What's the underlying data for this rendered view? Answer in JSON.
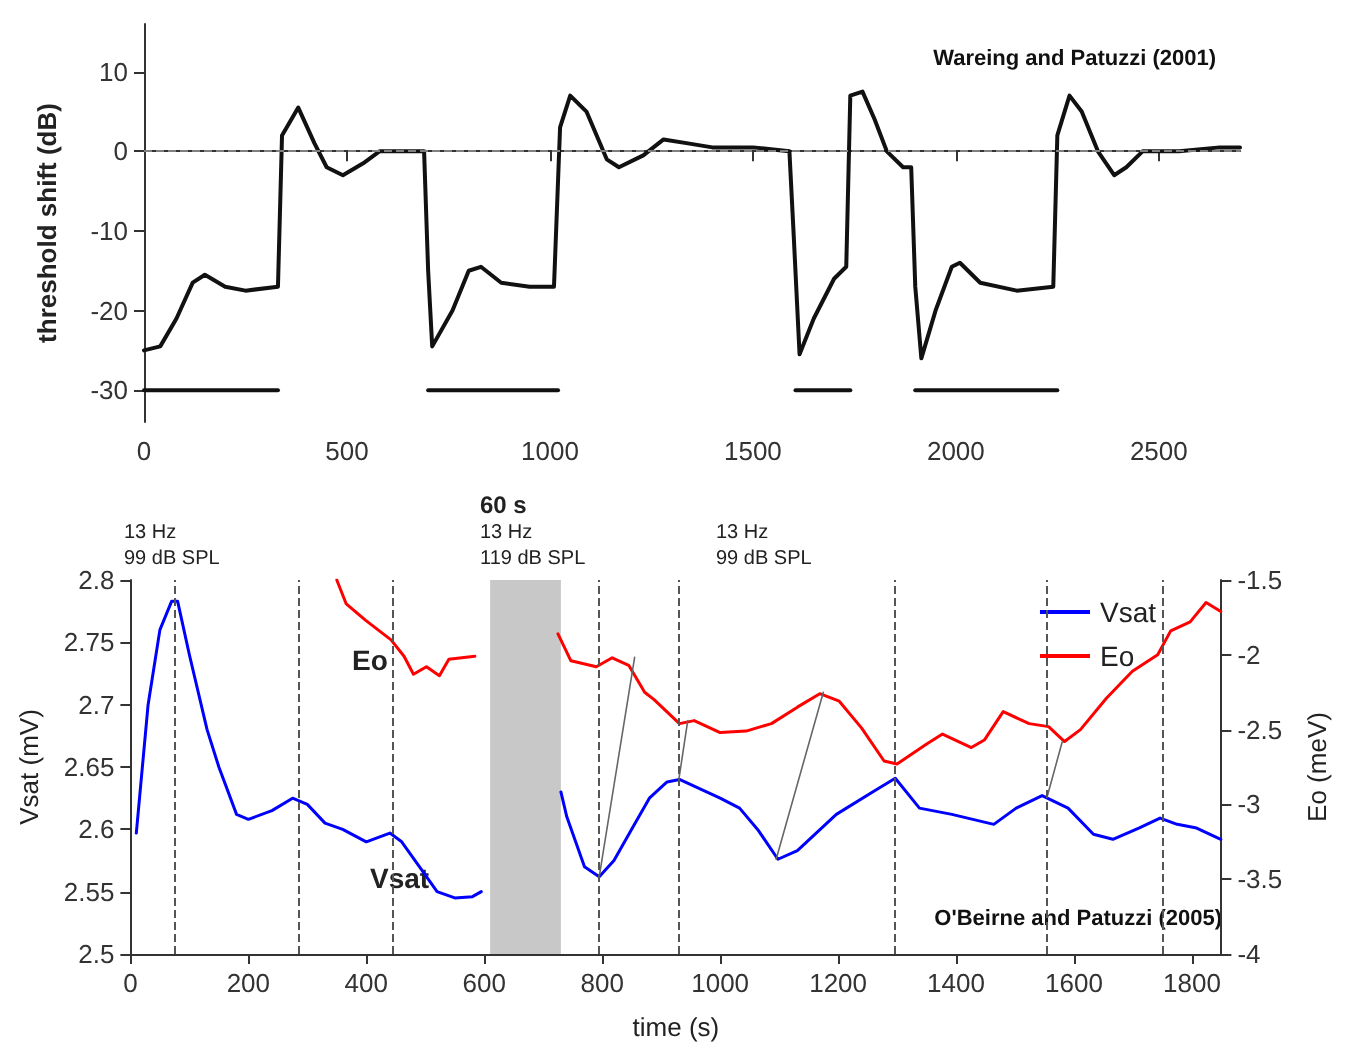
{
  "chart_data": [
    {
      "type": "line",
      "ylabel": "threshold shift (dB)",
      "xlim": [
        0,
        2700
      ],
      "xticks": [
        0,
        500,
        1000,
        1500,
        2000,
        2500
      ],
      "ylim": [
        -34,
        16
      ],
      "yticks": [
        -30,
        -20,
        -10,
        0,
        10
      ],
      "grid": false,
      "legend": false,
      "annotations": [
        "Wareing and Patuzzi (2001)"
      ],
      "ref_lines": [
        {
          "axis": "y",
          "value": 0,
          "color": "#808080",
          "line_style": "dashed"
        }
      ],
      "series": [
        {
          "color": "#111111",
          "x": [
            0,
            40,
            80,
            120,
            150,
            200,
            250,
            330,
            340,
            380,
            420,
            450,
            490,
            540,
            580,
            650,
            690,
            700,
            710,
            760,
            800,
            830,
            880,
            950,
            1010,
            1025,
            1050,
            1090,
            1140,
            1170,
            1230,
            1280,
            1340,
            1400,
            1500,
            1590,
            1600,
            1615,
            1650,
            1700,
            1730,
            1740,
            1770,
            1800,
            1830,
            1870,
            1890,
            1900,
            1915,
            1950,
            1990,
            2010,
            2060,
            2150,
            2240,
            2250,
            2280,
            2310,
            2350,
            2390,
            2420,
            2460,
            2550,
            2650,
            2700
          ],
          "values": [
            -25,
            -24.5,
            -21,
            -16.5,
            -15.5,
            -17,
            -17.5,
            -17,
            2,
            5.5,
            1,
            -2,
            -3,
            -1.5,
            0,
            0,
            0,
            -15,
            -24.5,
            -20,
            -15,
            -14.5,
            -16.5,
            -17,
            -17,
            3,
            7,
            5,
            -1,
            -2,
            -0.5,
            1.5,
            1,
            0.5,
            0.5,
            0,
            -10,
            -25.5,
            -21,
            -16,
            -14.5,
            7,
            7.5,
            4,
            0,
            -2,
            -2,
            -17,
            -26,
            -20,
            -14.5,
            -14,
            -16.5,
            -17.5,
            -17,
            2,
            7,
            5,
            0,
            -3,
            -2,
            0,
            0,
            0.5,
            0.5
          ]
        },
        {
          "color": "#111111",
          "x": [
            0,
            330
          ],
          "values": [
            -30,
            -30
          ]
        },
        {
          "color": "#111111",
          "x": [
            700,
            1020
          ],
          "values": [
            -30,
            -30
          ]
        },
        {
          "color": "#111111",
          "x": [
            1605,
            1740
          ],
          "values": [
            -30,
            -30
          ]
        },
        {
          "color": "#111111",
          "x": [
            1900,
            2250
          ],
          "values": [
            -30,
            -30
          ]
        }
      ]
    },
    {
      "type": "line",
      "xlabel": "time (s)",
      "ylabel": "Vsat (mV)",
      "y2label": "Eo (meV)",
      "xlim": [
        0,
        1850
      ],
      "xticks": [
        0,
        200,
        400,
        600,
        800,
        1000,
        1200,
        1400,
        1600,
        1800
      ],
      "ylim": [
        2.5,
        2.8
      ],
      "yticks": [
        2.5,
        2.55,
        2.6,
        2.65,
        2.7,
        2.75,
        2.8
      ],
      "y2lim": [
        -4,
        -1.5
      ],
      "y2ticks": [
        -4,
        -3.5,
        -3,
        -2.5,
        -2,
        -1.5
      ],
      "grid": false,
      "legend": "top right",
      "annotations": [
        "O'Beirne and Patuzzi (2005)",
        "13 Hz\n99 dB SPL",
        "13 Hz\n119 dB SPL",
        "60 s",
        "13 Hz\n99 dB SPL",
        "Eo",
        "Vsat"
      ],
      "ref_lines": [
        {
          "axis": "x",
          "value": 75,
          "color": "#555555",
          "line_style": "dashed"
        },
        {
          "axis": "x",
          "value": 285,
          "color": "#555555",
          "line_style": "dashed"
        },
        {
          "axis": "x",
          "value": 445,
          "color": "#555555",
          "line_style": "dashed"
        },
        {
          "axis": "x",
          "value": 795,
          "color": "#555555",
          "line_style": "dashed"
        },
        {
          "axis": "x",
          "value": 930,
          "color": "#555555",
          "line_style": "dashed"
        },
        {
          "axis": "x",
          "value": 1295,
          "color": "#555555",
          "line_style": "dashed"
        },
        {
          "axis": "x",
          "value": 1555,
          "color": "#555555",
          "line_style": "dashed"
        },
        {
          "axis": "x",
          "value": 1750,
          "color": "#555555",
          "line_style": "dashed"
        }
      ],
      "bands": [
        {
          "axis": "x",
          "from": 610,
          "to": 730,
          "color": "#c8c8c8"
        }
      ],
      "series": [
        {
          "name": "Vsat",
          "color": "#0000ff",
          "x": [
            10,
            30,
            50,
            70,
            80,
            100,
            130,
            150,
            180,
            200,
            240,
            275,
            300,
            330,
            360,
            400,
            440,
            460,
            490,
            520,
            550,
            580,
            595,
            600,
            730,
            740,
            770,
            795,
            820,
            850,
            880,
            910,
            931,
            1000,
            1033,
            1065,
            1098,
            1131,
            1197,
            1262,
            1297,
            1338,
            1393,
            1464,
            1502,
            1546,
            1590,
            1633,
            1666,
            1710,
            1746,
            1775,
            1808,
            1849
          ],
          "values": [
            2.597,
            2.7,
            2.76,
            2.783,
            2.783,
            2.74,
            2.68,
            2.65,
            2.612,
            2.608,
            2.615,
            2.625,
            2.62,
            2.605,
            2.6,
            2.59,
            2.597,
            2.59,
            2.57,
            2.55,
            2.545,
            2.546,
            2.55,
            null,
            2.63,
            2.61,
            2.57,
            2.562,
            2.575,
            2.6,
            2.625,
            2.638,
            2.64,
            2.625,
            2.617,
            2.599,
            2.576,
            2.583,
            2.612,
            2.631,
            2.641,
            2.617,
            2.612,
            2.604,
            2.617,
            2.627,
            2.617,
            2.596,
            2.592,
            2.601,
            2.609,
            2.604,
            2.601,
            2.592
          ]
        },
        {
          "name": "Eo",
          "color": "#ff0000",
          "axis": "y2",
          "x": [
            350,
            366,
            399,
            442,
            464,
            480,
            502,
            524,
            540,
            584,
            600,
            725,
            747,
            790,
            817,
            845,
            872,
            888,
            931,
            956,
            1000,
            1044,
            1087,
            1131,
            1169,
            1202,
            1240,
            1278,
            1300,
            1349,
            1377,
            1426,
            1448,
            1480,
            1524,
            1557,
            1584,
            1611,
            1655,
            1699,
            1742,
            1764,
            1797,
            1824,
            1849
          ],
          "values": [
            -1.5,
            -1.66,
            -1.77,
            -1.9,
            -2.01,
            -2.13,
            -2.08,
            -2.14,
            -2.03,
            -2.01,
            null,
            -1.86,
            -2.04,
            -2.08,
            -2.02,
            -2.07,
            -2.25,
            -2.3,
            -2.46,
            -2.44,
            -2.52,
            -2.51,
            -2.46,
            -2.35,
            -2.26,
            -2.31,
            -2.49,
            -2.71,
            -2.73,
            -2.6,
            -2.53,
            -2.62,
            -2.57,
            -2.38,
            -2.46,
            -2.48,
            -2.58,
            -2.5,
            -2.29,
            -2.11,
            -2.0,
            -1.84,
            -1.78,
            -1.65,
            -1.71
          ]
        },
        {
          "color": "#666666",
          "x": [
            795,
            855
          ],
          "values": [
            2.562,
            2.738
          ]
        },
        {
          "color": "#666666",
          "x": [
            930,
            945
          ],
          "values": [
            2.64,
            2.687
          ]
        },
        {
          "color": "#666666",
          "x": [
            1095,
            1175
          ],
          "values": [
            2.576,
            2.71
          ]
        },
        {
          "color": "#666666",
          "x": [
            1555,
            1580
          ],
          "values": [
            2.627,
            2.67
          ]
        }
      ]
    }
  ]
}
